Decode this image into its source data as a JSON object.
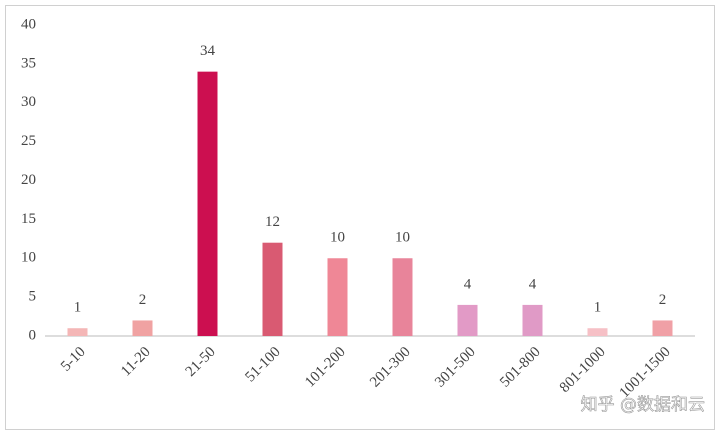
{
  "chart_data": {
    "type": "bar",
    "categories": [
      "5-10",
      "11-20",
      "21-50",
      "51-100",
      "101-200",
      "201-300",
      "301-500",
      "501-800",
      "801-1000",
      "1001-1500"
    ],
    "values": [
      1,
      2,
      34,
      12,
      10,
      10,
      4,
      4,
      1,
      2
    ],
    "colors": [
      "#f4b6b6",
      "#f0a2a2",
      "#cc0f50",
      "#d95a72",
      "#ef8796",
      "#e8849a",
      "#e29ac6",
      "#e09ac6",
      "#f6c0c6",
      "#f0a0a6"
    ],
    "ylim": [
      0,
      40
    ],
    "yticks": [
      0,
      5,
      10,
      15,
      20,
      25,
      30,
      35,
      40
    ],
    "grid": false,
    "watermark": "知乎 @数据和云"
  }
}
